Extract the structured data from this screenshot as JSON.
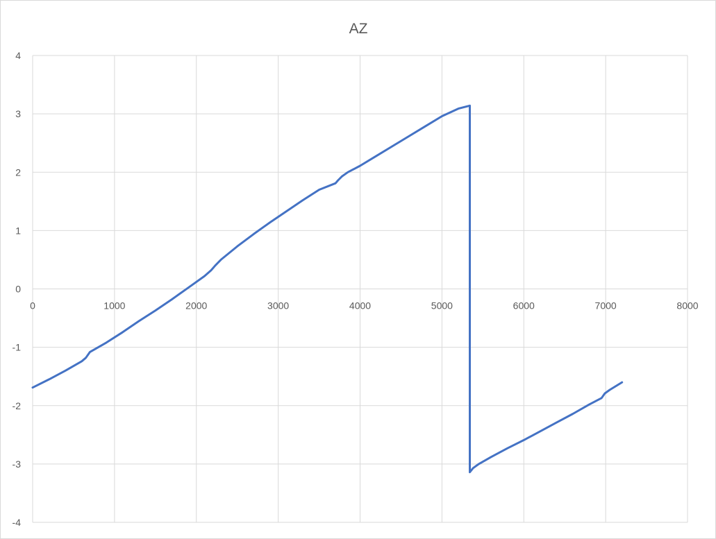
{
  "chart_data": {
    "type": "line",
    "title": "AZ",
    "xlabel": "",
    "ylabel": "",
    "xlim": [
      0,
      8000
    ],
    "ylim": [
      -4,
      4
    ],
    "x_ticks": [
      0,
      1000,
      2000,
      3000,
      4000,
      5000,
      6000,
      7000,
      8000
    ],
    "y_ticks": [
      4,
      3,
      2,
      1,
      0,
      -1,
      -2,
      -3,
      -4
    ],
    "grid": true,
    "legend": "none",
    "colors": {
      "series": "#4472C4",
      "grid": "#d9d9d9",
      "text": "#595959"
    },
    "series": [
      {
        "x": [
          0,
          200,
          400,
          600,
          650,
          700,
          900,
          1100,
          1300,
          1500,
          1700,
          1900,
          2100,
          2180,
          2230,
          2300,
          2500,
          2700,
          2900,
          3100,
          3300,
          3500,
          3700,
          3730,
          3780,
          3850,
          4000,
          4200,
          4400,
          4600,
          4800,
          5000,
          5200,
          5340,
          5340,
          5380,
          5450,
          5600,
          5800,
          6000,
          6200,
          6400,
          6600,
          6800,
          6950,
          6990,
          7050,
          7200
        ],
        "y": [
          -1.69,
          -1.55,
          -1.4,
          -1.24,
          -1.18,
          -1.08,
          -0.92,
          -0.74,
          -0.55,
          -0.37,
          -0.18,
          0.02,
          0.22,
          0.32,
          0.4,
          0.5,
          0.73,
          0.94,
          1.14,
          1.33,
          1.52,
          1.7,
          1.81,
          1.86,
          1.93,
          2.0,
          2.11,
          2.28,
          2.45,
          2.62,
          2.79,
          2.96,
          3.09,
          3.14,
          -3.14,
          -3.07,
          -3.0,
          -2.88,
          -2.73,
          -2.59,
          -2.44,
          -2.29,
          -2.14,
          -1.98,
          -1.87,
          -1.79,
          -1.73,
          -1.6
        ]
      }
    ]
  }
}
